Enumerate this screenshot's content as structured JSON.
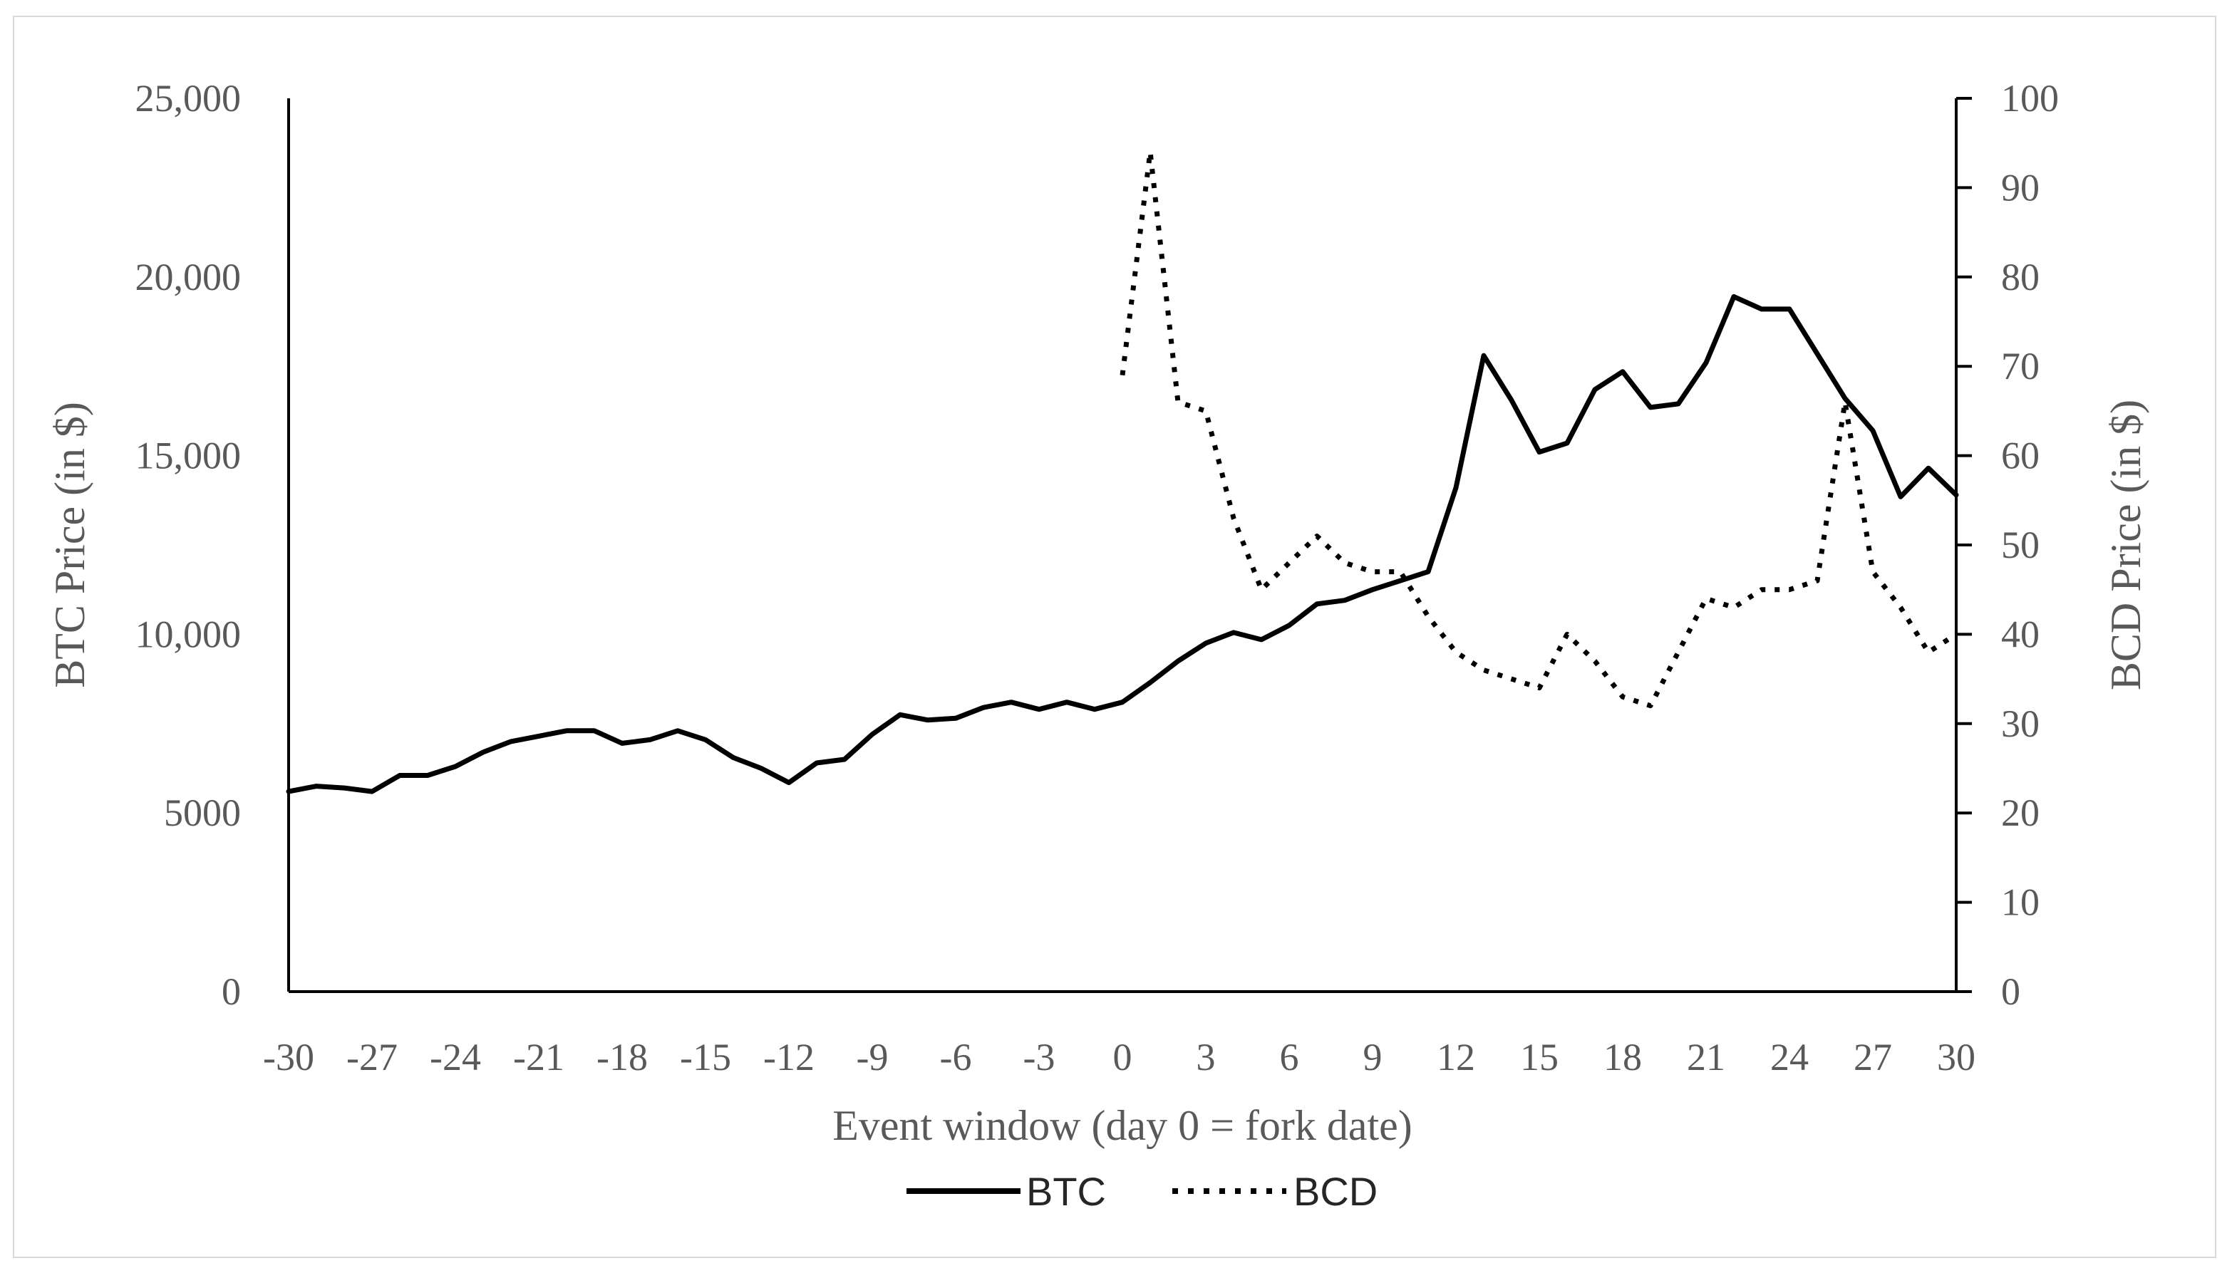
{
  "chart_data": {
    "type": "line",
    "title": "",
    "xlabel": "Event window (day 0 = fork date)",
    "ylabel_left": "BTC Price (in $)",
    "ylabel_right": "BCD Price (in $)",
    "x_ticks": [
      "-30",
      "-27",
      "-24",
      "-21",
      "-18",
      "-15",
      "-12",
      "-9",
      "-6",
      "-3",
      "0",
      "3",
      "6",
      "9",
      "12",
      "15",
      "18",
      "21",
      "24",
      "27",
      "30"
    ],
    "y_left_ticks": [
      "0",
      "5000",
      "10,000",
      "15,000",
      "20,000",
      "25,000"
    ],
    "y_right_ticks": [
      "0",
      "10",
      "20",
      "30",
      "40",
      "50",
      "60",
      "70",
      "80",
      "90",
      "100"
    ],
    "ylim_left": [
      0,
      25000
    ],
    "ylim_right": [
      0,
      100
    ],
    "xlim": [
      -30,
      30
    ],
    "legend_position": "bottom-center",
    "grid": false,
    "series": [
      {
        "name": "BTC",
        "axis": "left",
        "style": "solid",
        "color": "#000000",
        "x": [
          -30,
          -29,
          -28,
          -27,
          -26,
          -25,
          -24,
          -23,
          -22,
          -21,
          -20,
          -19,
          -18,
          -17,
          -16,
          -15,
          -14,
          -13,
          -12,
          -11,
          -10,
          -9,
          -8,
          -7,
          -6,
          -5,
          -4,
          -3,
          -2,
          -1,
          0,
          1,
          2,
          3,
          4,
          5,
          6,
          7,
          8,
          9,
          10,
          11,
          12,
          13,
          14,
          15,
          16,
          17,
          18,
          19,
          20,
          21,
          22,
          23,
          24,
          25,
          26,
          27,
          28,
          29,
          30
        ],
        "y": [
          5600,
          5750,
          5700,
          5600,
          6050,
          6050,
          6300,
          6700,
          7000,
          7150,
          7300,
          7300,
          6950,
          7050,
          7300,
          7050,
          6550,
          6250,
          5850,
          6400,
          6500,
          7200,
          7750,
          7600,
          7650,
          7950,
          8100,
          7900,
          8100,
          7900,
          8100,
          8650,
          9250,
          9750,
          10050,
          9850,
          10250,
          10850,
          10950,
          11250,
          11500,
          11750,
          14100,
          17800,
          16550,
          15100,
          15350,
          16850,
          17350,
          16350,
          16450,
          17600,
          19450,
          19100,
          19100,
          17850,
          16600,
          15700,
          13850,
          14650,
          13900
        ]
      },
      {
        "name": "BCD",
        "axis": "right",
        "style": "dotted",
        "color": "#000000",
        "x": [
          0,
          1,
          2,
          3,
          4,
          5,
          6,
          7,
          8,
          9,
          10,
          11,
          12,
          13,
          14,
          15,
          16,
          17,
          18,
          19,
          20,
          21,
          22,
          23,
          24,
          25,
          26,
          27,
          28,
          29,
          30
        ],
        "y": [
          69,
          94,
          66,
          65,
          53,
          45,
          48,
          51,
          48,
          47,
          47,
          42,
          38,
          36,
          35,
          34,
          40,
          37,
          33,
          32,
          38,
          44,
          43,
          45,
          45,
          46,
          66,
          47,
          43,
          38,
          40
        ]
      }
    ]
  }
}
